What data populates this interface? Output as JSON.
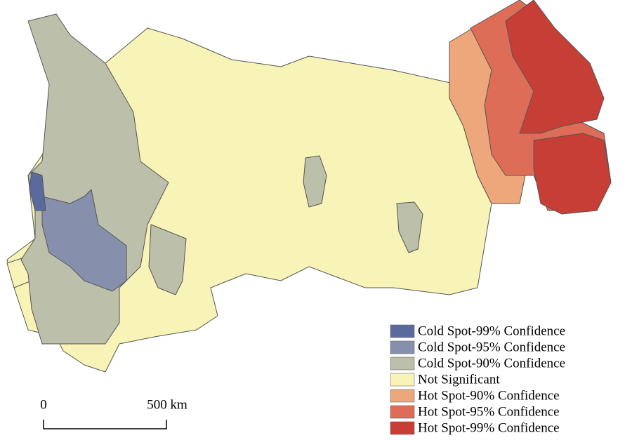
{
  "legend": [
    {
      "label": "Cold Spot-99% Confidence",
      "color": "#5b6a9c"
    },
    {
      "label": "Cold Spot-95% Confidence",
      "color": "#8690ad"
    },
    {
      "label": "Cold Spot-90% Confidence",
      "color": "#bcbfa9"
    },
    {
      "label": "Not Significant",
      "color": "#f8f3b6"
    },
    {
      "label": "Hot Spot-90% Confidence",
      "color": "#eea77b"
    },
    {
      "label": "Hot Spot-95% Confidence",
      "color": "#de6d57"
    },
    {
      "label": "Hot Spot-99% Confidence",
      "color": "#c73e36"
    }
  ],
  "scale_bar": {
    "start_label": "0",
    "end_label": "500 km"
  }
}
